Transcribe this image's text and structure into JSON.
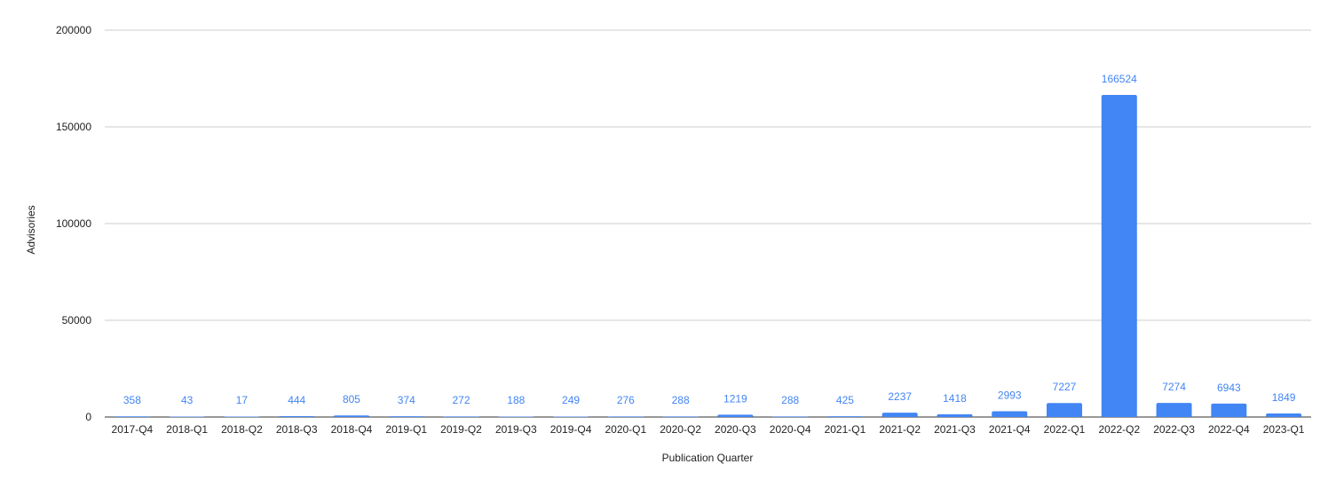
{
  "chart_data": {
    "type": "bar",
    "title": "",
    "xlabel": "Publication Quarter",
    "ylabel": "Advisories",
    "ylim": [
      0,
      200000
    ],
    "yticks": [
      0,
      50000,
      100000,
      150000,
      200000
    ],
    "grid": true,
    "bar_color": "#4285f4",
    "data_labels": true,
    "categories": [
      "2017-Q4",
      "2018-Q1",
      "2018-Q2",
      "2018-Q3",
      "2018-Q4",
      "2019-Q1",
      "2019-Q2",
      "2019-Q3",
      "2019-Q4",
      "2020-Q1",
      "2020-Q2",
      "2020-Q3",
      "2020-Q4",
      "2021-Q1",
      "2021-Q2",
      "2021-Q3",
      "2021-Q4",
      "2022-Q1",
      "2022-Q2",
      "2022-Q3",
      "2022-Q4",
      "2023-Q1"
    ],
    "values": [
      358,
      43,
      17,
      444,
      805,
      374,
      272,
      188,
      249,
      276,
      288,
      1219,
      288,
      425,
      2237,
      1418,
      2993,
      7227,
      166524,
      7274,
      6943,
      1849
    ]
  }
}
